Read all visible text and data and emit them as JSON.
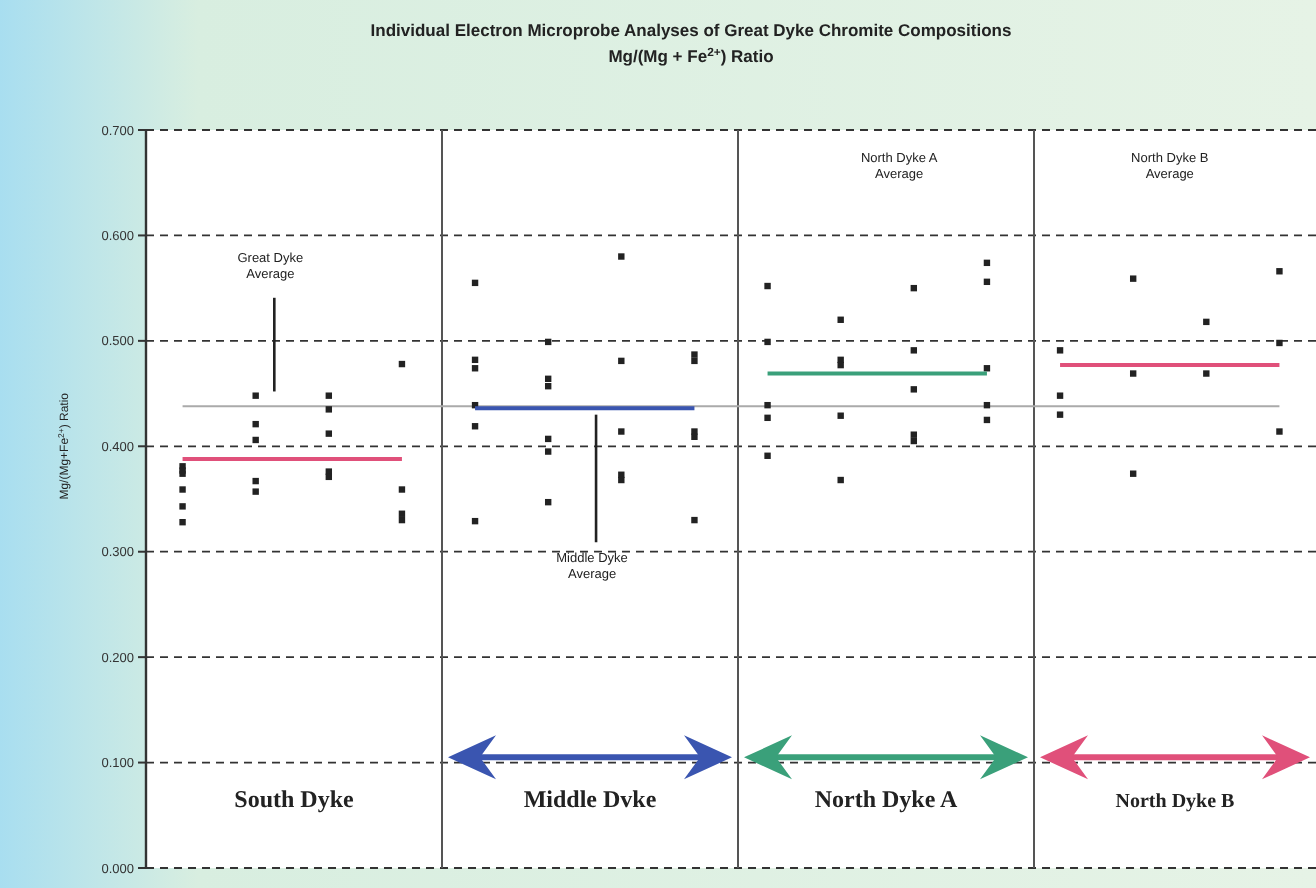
{
  "chart_data": {
    "type": "scatter",
    "title": "Individual Electron Microprobe Analyses of Great Dyke Chromite Compositions",
    "subtitle": "Mg/(Mg + Fe$^{2+}$) Ratio",
    "ylabel": "Mg/(Mg+Fe$^{2+}$) Ratio",
    "categories": [
      null,
      null,
      null,
      null,
      null,
      null,
      null,
      null,
      null,
      null,
      null,
      null,
      null,
      null,
      null,
      null
    ],
    "ylim": [
      0,
      0.7
    ],
    "yticks": [
      {
        "value": 0,
        "label": "0.000"
      },
      {
        "value": 0.1,
        "label": "0.100"
      },
      {
        "value": 0.2,
        "label": "0.200"
      },
      {
        "value": 0.3,
        "label": "0.300"
      },
      {
        "value": 0.4,
        "label": "0.400"
      },
      {
        "value": 0.5,
        "label": "0.500"
      },
      {
        "value": 0.6,
        "label": "0.600"
      },
      {
        "value": 0.7,
        "label": "0.700"
      }
    ],
    "tick_labels": "y",
    "grid": "y",
    "marker": "square",
    "series": [
      {
        "color": "#222222",
        "values": [
          0.381,
          0.448,
          0.448,
          0.478,
          0.555,
          0.499,
          0.58,
          0.487,
          0.552,
          0.52,
          0.55,
          0.574,
          0.491,
          0.559,
          0.518,
          0.566
        ]
      },
      {
        "color": "#222222",
        "values": [
          0.377,
          0.421,
          0.435,
          0.359,
          0.482,
          0.464,
          0.481,
          0.481,
          0.499,
          0.482,
          0.491,
          0.556,
          0.448,
          0.469,
          0.469,
          0.498
        ]
      },
      {
        "color": "#222222",
        "values": [
          0.374,
          0.406,
          0.412,
          0.336,
          0.474,
          0.457,
          0.414,
          0.414,
          0.439,
          0.477,
          0.454,
          0.474,
          0.43,
          0.374,
          null,
          0.414
        ]
      },
      {
        "color": "#222222",
        "values": [
          0.359,
          0.367,
          0.376,
          0.33,
          0.439,
          0.407,
          0.373,
          0.409,
          0.427,
          0.429,
          0.411,
          0.439,
          null,
          null,
          null,
          null
        ]
      },
      {
        "color": "#222222",
        "values": [
          0.343,
          0.357,
          0.371,
          null,
          0.419,
          0.395,
          0.368,
          0.33,
          0.391,
          0.368,
          0.405,
          0.425,
          null,
          null,
          null,
          null
        ]
      },
      {
        "color": "#222222",
        "values": [
          0.328,
          null,
          null,
          null,
          0.329,
          0.347,
          null,
          null,
          null,
          null,
          null,
          null,
          null,
          null,
          null,
          null
        ]
      },
      {
        "type": "line",
        "marker": "none",
        "color": "#e0507a",
        "values": [
          0.388,
          0.388,
          0.388,
          0.388,
          null,
          null,
          null,
          null,
          null,
          null,
          null,
          null,
          null,
          null,
          null,
          null
        ]
      },
      {
        "type": "line",
        "marker": "none",
        "color": "#3a55b0",
        "values": [
          null,
          null,
          null,
          null,
          0.436,
          0.436,
          0.436,
          0.436,
          null,
          null,
          null,
          null,
          null,
          null,
          null,
          null
        ]
      },
      {
        "type": "line",
        "marker": "none",
        "color": "#3aa07a",
        "values": [
          null,
          null,
          null,
          null,
          null,
          null,
          null,
          null,
          0.469,
          0.469,
          0.469,
          0.469,
          null,
          null,
          null,
          null
        ]
      },
      {
        "type": "line",
        "marker": "none",
        "color": "#e0507a",
        "values": [
          null,
          null,
          null,
          null,
          null,
          null,
          null,
          null,
          null,
          null,
          null,
          null,
          0.477,
          0.477,
          0.477,
          0.477
        ]
      }
    ],
    "ref_lines": [
      {
        "axis": "y",
        "value": 0.438,
        "color": "#aaaaaa"
      }
    ],
    "annotations": [
      "South Dyke",
      "Middle Dvke",
      "North Dyke A",
      "North Dyke B",
      "Great Dyke Average",
      "Middle Dyke Average",
      "North Dyke A Average",
      "North Dyke B Average"
    ]
  }
}
